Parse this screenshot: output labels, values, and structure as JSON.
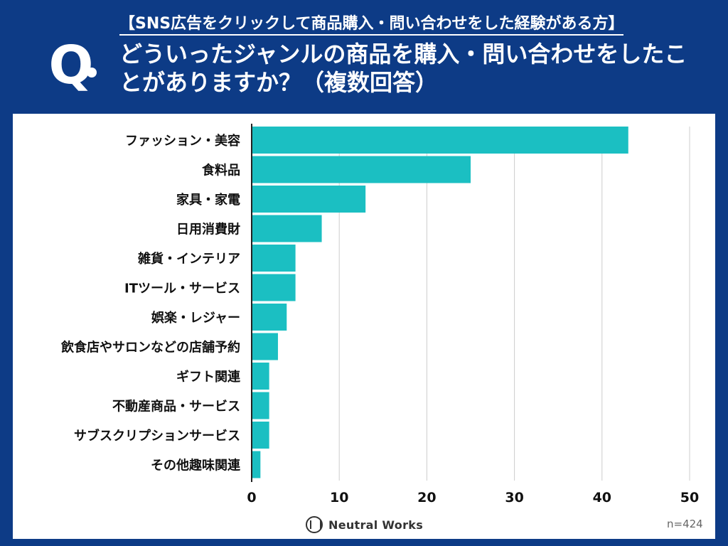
{
  "header": {
    "q_label": "Q",
    "subtitle": "【SNS広告をクリックして商品購入・問い合わせをした経験がある方】",
    "title": "どういったジャンルの商品を購入・問い合わせをしたことがありますか？（複数回答）"
  },
  "footer": {
    "brand": "Neutral Works",
    "sample_size": "n=424"
  },
  "colors": {
    "background": "#0d3b86",
    "bar": "#1bbfc2",
    "grid": "#cccccc"
  },
  "chart_data": {
    "type": "bar",
    "orientation": "horizontal",
    "categories": [
      "ファッション・美容",
      "食料品",
      "家具・家電",
      "日用消費財",
      "雑貨・インテリア",
      "ITツール・サービス",
      "娯楽・レジャー",
      "飲食店やサロンなどの店舗予約",
      "ギフト関連",
      "不動産商品・サービス",
      "サブスクリプションサービス",
      "その他趣味関連"
    ],
    "values": [
      43,
      25,
      13,
      8,
      5,
      5,
      4,
      3,
      2,
      2,
      2,
      1
    ],
    "xlim": [
      0,
      50
    ],
    "xticks": [
      0,
      10,
      20,
      30,
      40,
      50
    ],
    "title": "",
    "xlabel": "",
    "ylabel": "",
    "grid": true
  }
}
